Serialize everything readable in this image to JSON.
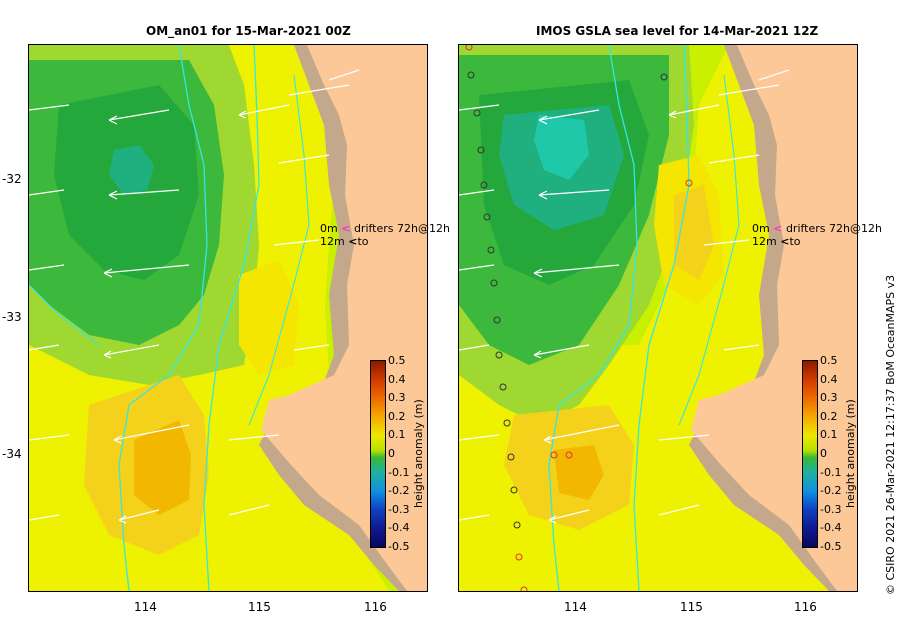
{
  "panels": [
    {
      "title": "OM_an01  for 15-Mar-2021 00Z"
    },
    {
      "title": "IMOS GSLA sea level  for 14-Mar-2021 12Z"
    }
  ],
  "x_ticks": [
    "114",
    "115",
    "116"
  ],
  "y_ticks": [
    "-32",
    "-33",
    "-34"
  ],
  "colorbar": {
    "title": "height anomaly (m)",
    "labels": [
      "0.5",
      "0.4",
      "0.3",
      "0.2",
      "0.1",
      "0",
      "-0.1",
      "-0.2",
      "-0.3",
      "-0.4",
      "-0.5"
    ]
  },
  "legend": {
    "line1_left": "0m",
    "line1_right": "drifters 72h@12h",
    "line2_left": "12m",
    "line2_right": "to",
    "arrow_magenta": "#ff33cc"
  },
  "credit": "© CSIRO 2021   26-Mar-2021 12:17:37 BoM OceanMAPS v3",
  "colors": {
    "land": "#fdc898",
    "shelf": "#c3a88c",
    "contour": "#33e6e6"
  }
}
